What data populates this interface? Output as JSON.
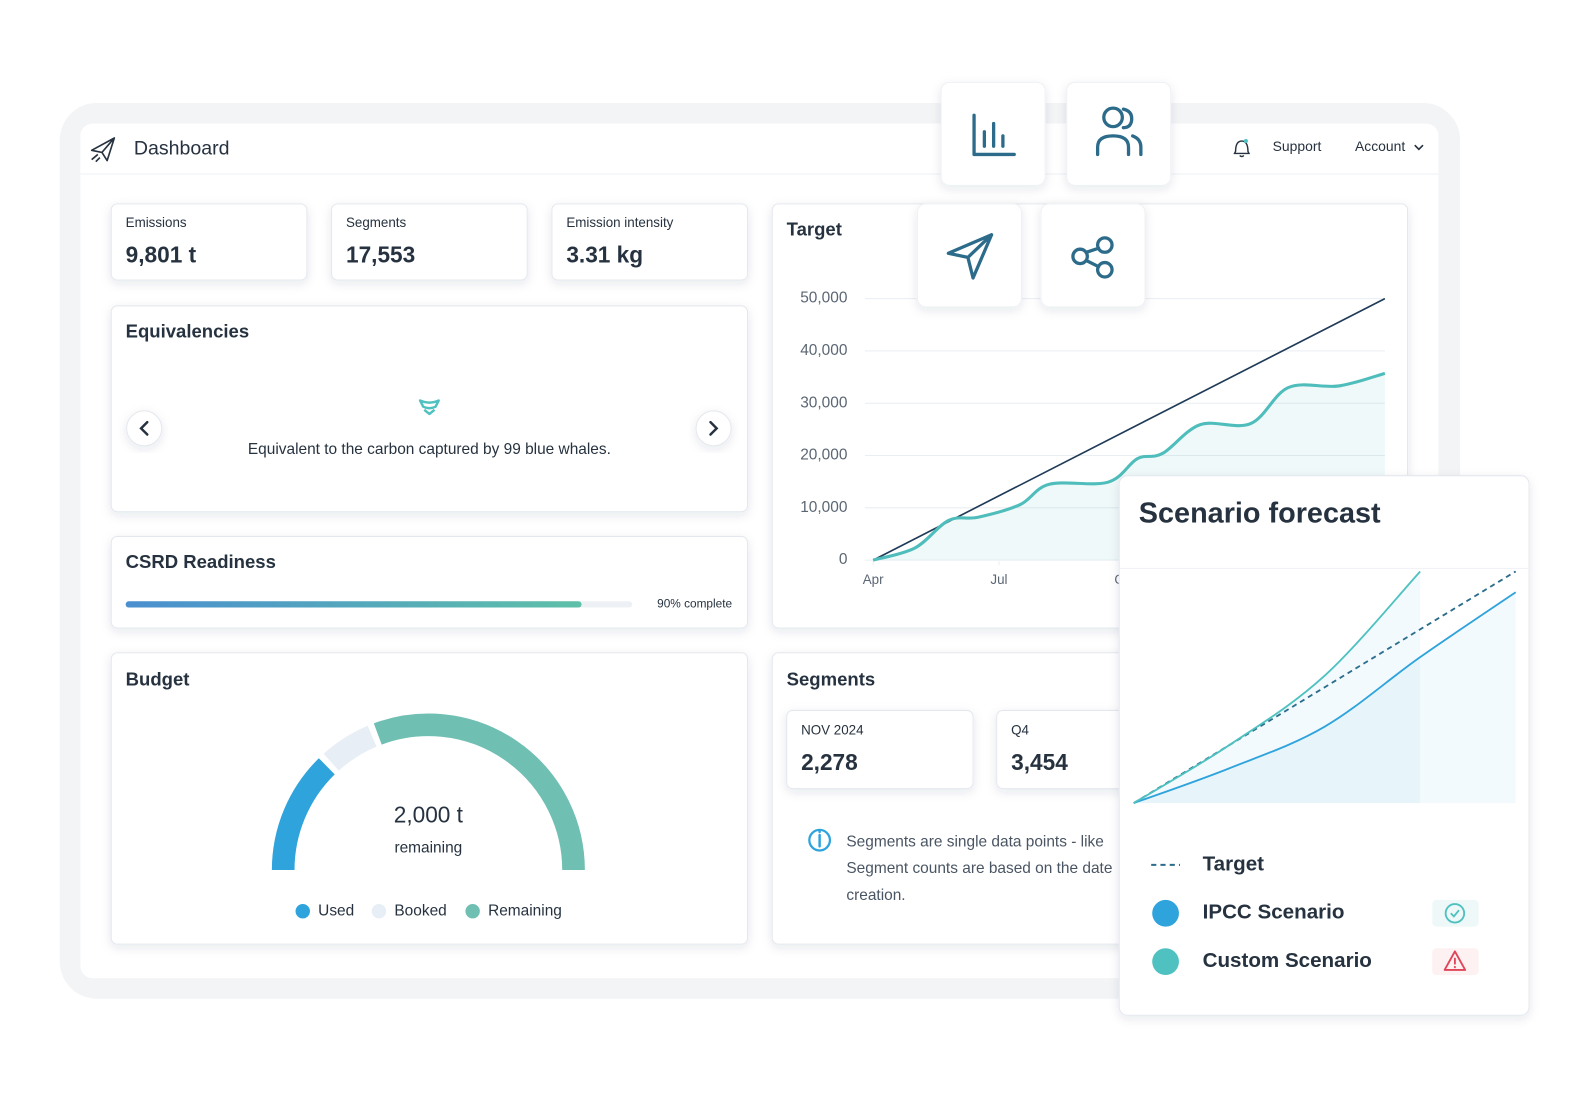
{
  "header": {
    "title": "Dashboard",
    "links": [
      "Support",
      "Account"
    ]
  },
  "kpis": [
    {
      "label": "Emissions",
      "value": "9,801 t"
    },
    {
      "label": "Segments",
      "value": "17,553"
    },
    {
      "label": "Emission intensity",
      "value": "3.31 kg"
    }
  ],
  "equivalencies": {
    "title": "Equivalencies",
    "text": "Equivalent to the carbon captured by 99 blue whales."
  },
  "csrd": {
    "title": "CSRD Readiness",
    "progress": {
      "value": 90,
      "label": "90% complete"
    }
  },
  "budget": {
    "title": "Budget",
    "center_value": "2,000 t",
    "center_label": "remaining",
    "series": [
      {
        "name": "Used",
        "color": "#2ea3dc",
        "value": 26
      },
      {
        "name": "Booked",
        "color": "#e8eef6",
        "value": 12
      },
      {
        "name": "Remaining",
        "color": "#6fbfb3",
        "value": 62
      }
    ]
  },
  "target": {
    "title": "Target",
    "type": "line",
    "xlim": [
      0,
      12.2
    ],
    "xticks": [
      {
        "value": 0,
        "label": "Apr"
      },
      {
        "value": 3,
        "label": "Jul"
      },
      {
        "value": 6,
        "label": "Oct"
      }
    ],
    "ylim": [
      0,
      50000
    ],
    "yticks": [
      0,
      {
        "value": 10000,
        "label": "10,000"
      },
      {
        "value": 20000,
        "label": "20,000"
      },
      {
        "value": 30000,
        "label": "30,000"
      },
      {
        "value": 40000,
        "label": "40,000"
      },
      {
        "value": 50000,
        "label": "50,000"
      }
    ],
    "grid": true,
    "series": [
      {
        "color": "#1f3b57",
        "x": [
          0,
          12.2
        ],
        "values": [
          0,
          50000
        ]
      },
      {
        "color": "#4fbdbb",
        "fill": true,
        "x": [
          0,
          1.0,
          1.8,
          2.5,
          3.5,
          4.2,
          5.6,
          6.3,
          6.9,
          7.8,
          9.0,
          9.9,
          11.1,
          12.2
        ],
        "values": [
          0,
          2350,
          7600,
          8200,
          10600,
          14500,
          14900,
          19400,
          20400,
          25900,
          26100,
          33000,
          33300,
          35700
        ]
      }
    ]
  },
  "segments": {
    "title": "Segments",
    "cards": [
      {
        "label": "NOV 2024",
        "value": "2,278"
      },
      {
        "label": "Q4",
        "value": "3,454"
      }
    ],
    "info": [
      "Segments are single data points - like",
      "Segment counts are based on the date",
      "creation."
    ]
  },
  "scenario": {
    "title": "Scenario forecast",
    "type": "line",
    "xlim": [
      0,
      10
    ],
    "ylim": [
      0,
      100
    ],
    "series": [
      {
        "name": "Target",
        "color": "#2c6b8a",
        "dashed": true,
        "x": [
          0,
          10
        ],
        "values": [
          0,
          100
        ]
      },
      {
        "name": "IPCC Scenario",
        "color": "#2ea3dc",
        "status": "ok",
        "x": [
          0,
          2.5,
          5,
          7.5,
          10
        ],
        "values": [
          0,
          15,
          33,
          63,
          91
        ]
      },
      {
        "name": "Custom Scenario",
        "color": "#4fc1c0",
        "status": "warning",
        "x": [
          0,
          2.5,
          5,
          7.5
        ],
        "values": [
          0,
          25,
          55,
          100
        ]
      }
    ]
  }
}
